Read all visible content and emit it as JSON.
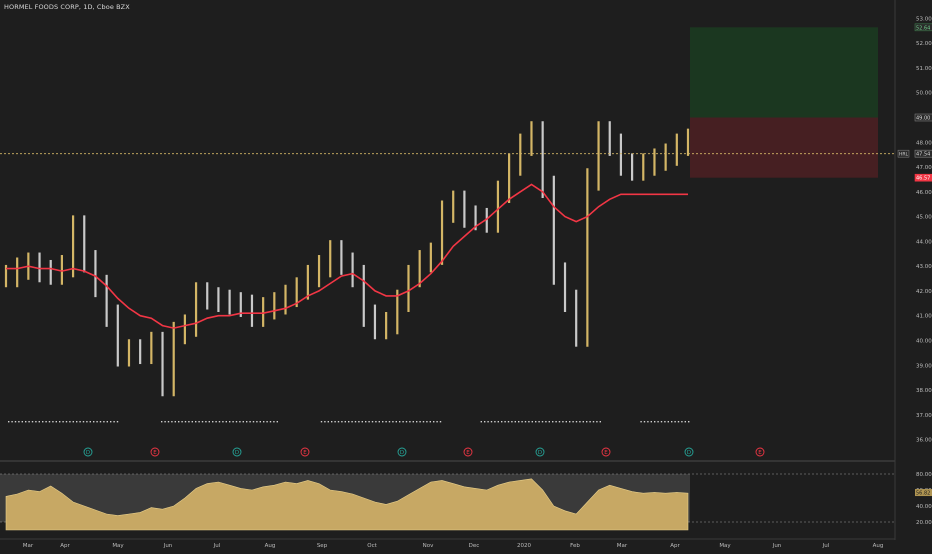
{
  "header": {
    "symbol_title": "HORMEL FOODS CORP, 1D, Cboe BZX"
  },
  "colors": {
    "background": "#1e1e1e",
    "bar_up": "#d4b666",
    "bar_down": "#c9c9c9",
    "moving_average": "#f23645",
    "price_line": "#d4b666",
    "target_zone": "#1b3a20",
    "stop_zone": "#4a1f22",
    "oscillator_fill": "#c7a864",
    "oscillator_band": "#3a3a3a",
    "last_price_label": "#f23645"
  },
  "price_axis": {
    "ticks": [
      "53.00",
      "52.00",
      "51.00",
      "50.00",
      "49.00",
      "48.00",
      "47.00",
      "46.00",
      "45.00",
      "44.00",
      "43.00",
      "42.00",
      "41.00",
      "40.00",
      "39.00",
      "38.00",
      "37.00",
      "36.00"
    ],
    "badges": [
      {
        "text": "52.64",
        "value": 52.64,
        "kind": "target"
      },
      {
        "text": "49.00",
        "value": 49.0,
        "kind": "entry"
      },
      {
        "text": "47.54",
        "value": 47.54,
        "kind": "price",
        "prefix": "HRL"
      },
      {
        "text": "46.57",
        "value": 46.57,
        "kind": "stop"
      }
    ]
  },
  "oscillator_axis": {
    "ticks": [
      "80.00",
      "60.00",
      "40.00",
      "20.00"
    ],
    "badge": "56.82"
  },
  "time_axis": {
    "labels": [
      "Mar",
      "Apr",
      "May",
      "Jun",
      "Jul",
      "Aug",
      "Sep",
      "Oct",
      "Nov",
      "Dec",
      "2020",
      "Feb",
      "Mar",
      "Apr",
      "May",
      "Jun",
      "Jul",
      "Aug"
    ]
  },
  "event_markers": [
    "D",
    "E",
    "D",
    "E",
    "D",
    "E",
    "D",
    "E",
    "D",
    "E"
  ],
  "chart_data": {
    "type": "line",
    "series": [
      {
        "values": [
          42.6,
          42.9,
          43.1,
          42.8,
          42.7,
          43.0,
          44.6,
          43.2,
          42.2,
          41.0,
          39.4,
          39.6,
          39.5,
          39.9,
          38.2,
          40.3,
          40.6,
          41.9,
          41.7,
          41.6,
          41.5,
          41.4,
          41.0,
          41.3,
          41.5,
          41.8,
          42.1,
          42.6,
          43.0,
          43.6,
          43.1,
          42.6,
          41.0,
          40.5,
          40.7,
          41.6,
          42.6,
          43.2,
          43.5,
          45.2,
          45.6,
          45.0,
          44.9,
          44.8,
          46.0,
          47.1,
          47.9,
          48.4,
          46.2,
          42.7,
          41.6,
          40.2,
          46.5,
          48.4,
          47.9,
          47.1,
          46.9,
          47.1,
          47.3,
          47.5,
          47.9,
          48.1
        ]
      },
      {
        "values": [
          42.9,
          42.9,
          43.0,
          42.9,
          42.9,
          42.8,
          42.9,
          42.8,
          42.6,
          42.2,
          41.7,
          41.3,
          41.0,
          40.9,
          40.6,
          40.5,
          40.6,
          40.7,
          40.9,
          41.0,
          41.0,
          41.1,
          41.1,
          41.1,
          41.2,
          41.3,
          41.5,
          41.8,
          42.0,
          42.3,
          42.6,
          42.7,
          42.4,
          42.0,
          41.8,
          41.8,
          42.0,
          42.3,
          42.7,
          43.2,
          43.8,
          44.2,
          44.6,
          44.9,
          45.3,
          45.7,
          46.0,
          46.3,
          46.0,
          45.4,
          45.0,
          44.8,
          45.0,
          45.4,
          45.7,
          45.9,
          45.9,
          45.9,
          45.9,
          45.9,
          45.9,
          45.9
        ]
      }
    ],
    "oscillator": {
      "values": [
        52,
        55,
        60,
        58,
        65,
        56,
        45,
        40,
        35,
        30,
        28,
        30,
        32,
        38,
        36,
        40,
        50,
        62,
        68,
        70,
        66,
        62,
        60,
        64,
        66,
        70,
        68,
        72,
        68,
        60,
        58,
        55,
        50,
        45,
        42,
        46,
        54,
        62,
        70,
        72,
        68,
        64,
        62,
        60,
        66,
        70,
        72,
        74,
        60,
        40,
        34,
        30,
        45,
        60,
        66,
        62,
        58,
        56,
        57,
        56,
        57,
        56
      ],
      "ylim": [
        10,
        85
      ]
    },
    "ylim": [
      35.5,
      53.5
    ]
  }
}
